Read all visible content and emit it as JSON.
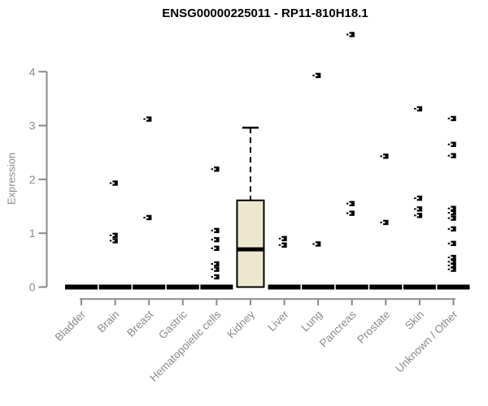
{
  "page": {
    "title": "ENSG00000225011 - RP11-810H18.1"
  },
  "chart_data": {
    "type": "boxplot",
    "title": "ENSG00000225011 - RP11-810H18.1",
    "xlabel": "",
    "ylabel": "Expression",
    "ylim": [
      0,
      4.8
    ],
    "yticks": [
      0,
      1,
      2,
      3,
      4
    ],
    "grid": false,
    "legend": "none",
    "categories": [
      "Bladder",
      "Brain",
      "Breast",
      "Gastric",
      "Hematopoietic cells",
      "Kidney",
      "Liver",
      "Lung",
      "Pancreas",
      "Prostate",
      "Skin",
      "Unknown / Other"
    ],
    "series": [
      {
        "category": "Bladder",
        "box": {
          "q1": 0,
          "median": 0,
          "q3": 0,
          "whisker_low": 0,
          "whisker_high": 0
        },
        "outliers": []
      },
      {
        "category": "Brain",
        "box": {
          "q1": 0,
          "median": 0,
          "q3": 0,
          "whisker_low": 0,
          "whisker_high": 0
        },
        "outliers": [
          1.93,
          0.96,
          0.86
        ]
      },
      {
        "category": "Breast",
        "box": {
          "q1": 0,
          "median": 0,
          "q3": 0,
          "whisker_low": 0,
          "whisker_high": 0
        },
        "outliers": [
          3.12,
          1.29
        ]
      },
      {
        "category": "Gastric",
        "box": {
          "q1": 0,
          "median": 0,
          "q3": 0,
          "whisker_low": 0,
          "whisker_high": 0
        },
        "outliers": []
      },
      {
        "category": "Hematopoietic cells",
        "box": {
          "q1": 0,
          "median": 0,
          "q3": 0,
          "whisker_low": 0,
          "whisker_high": 0
        },
        "outliers": [
          2.19,
          1.05,
          0.88,
          0.72,
          0.43,
          0.33,
          0.19
        ]
      },
      {
        "category": "Kidney",
        "box": {
          "q1": 0,
          "median": 0.7,
          "q3": 1.61,
          "whisker_low": 0,
          "whisker_high": 2.96
        },
        "outliers": []
      },
      {
        "category": "Liver",
        "box": {
          "q1": 0,
          "median": 0,
          "q3": 0,
          "whisker_low": 0,
          "whisker_high": 0
        },
        "outliers": [
          0.9,
          0.78
        ]
      },
      {
        "category": "Lung",
        "box": {
          "q1": 0,
          "median": 0,
          "q3": 0,
          "whisker_low": 0,
          "whisker_high": 0
        },
        "outliers": [
          3.93,
          0.8
        ]
      },
      {
        "category": "Pancreas",
        "box": {
          "q1": 0,
          "median": 0,
          "q3": 0,
          "whisker_low": 0,
          "whisker_high": 0
        },
        "outliers": [
          4.69,
          1.55,
          1.37
        ]
      },
      {
        "category": "Prostate",
        "box": {
          "q1": 0,
          "median": 0,
          "q3": 0,
          "whisker_low": 0,
          "whisker_high": 0
        },
        "outliers": [
          2.43,
          1.2
        ]
      },
      {
        "category": "Skin",
        "box": {
          "q1": 0,
          "median": 0,
          "q3": 0,
          "whisker_low": 0,
          "whisker_high": 0
        },
        "outliers": [
          3.31,
          1.65,
          1.45,
          1.33
        ]
      },
      {
        "category": "Unknown / Other",
        "box": {
          "q1": 0,
          "median": 0,
          "q3": 0,
          "whisker_low": 0,
          "whisker_high": 0
        },
        "outliers": [
          3.13,
          2.65,
          2.44,
          1.46,
          1.38,
          1.28,
          1.08,
          0.81,
          0.55,
          0.47,
          0.4,
          0.33
        ]
      }
    ],
    "colors": {
      "box_fill": "#EDE7CE",
      "box_stroke": "#000000",
      "median": "#000000",
      "outlier": "#000000",
      "axis": "#8A8A8A",
      "title": "#000000"
    }
  }
}
